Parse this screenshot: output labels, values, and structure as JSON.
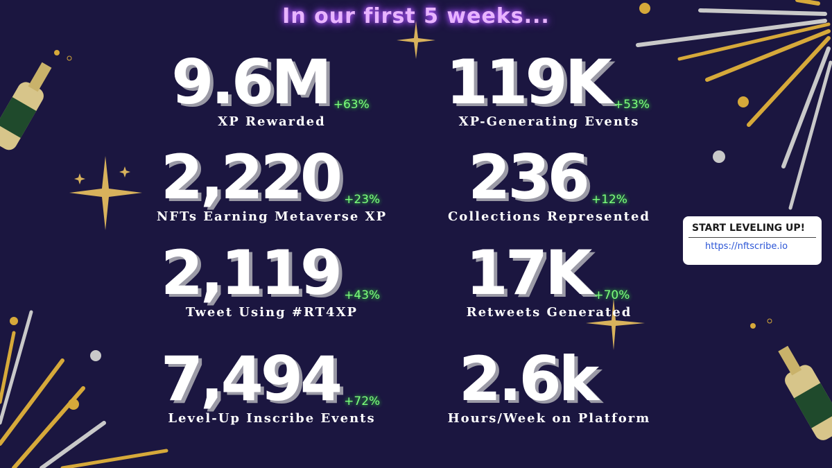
{
  "title": "In our first 5 weeks...",
  "stats": [
    {
      "value": "9.6M",
      "change": "+63%",
      "label": "XP Rewarded"
    },
    {
      "value": "119K",
      "change": "+53%",
      "label": "XP-Generating Events"
    },
    {
      "value": "2,220",
      "change": "+23%",
      "label": "NFTs Earning Metaverse XP"
    },
    {
      "value": "236",
      "change": "+12%",
      "label": "Collections Represented"
    },
    {
      "value": "2,119",
      "change": "+43%",
      "label": "Tweet Using #RT4XP"
    },
    {
      "value": "17K",
      "change": "+70%",
      "label": "Retweets Generated"
    },
    {
      "value": "7,494",
      "change": "+72%",
      "label": "Level-Up Inscribe Events"
    },
    {
      "value": "2.6k",
      "label": "Hours/Week on Platform"
    }
  ],
  "cta": {
    "heading": "START LEVELING UP!",
    "url": "https://nftscribe.io"
  }
}
